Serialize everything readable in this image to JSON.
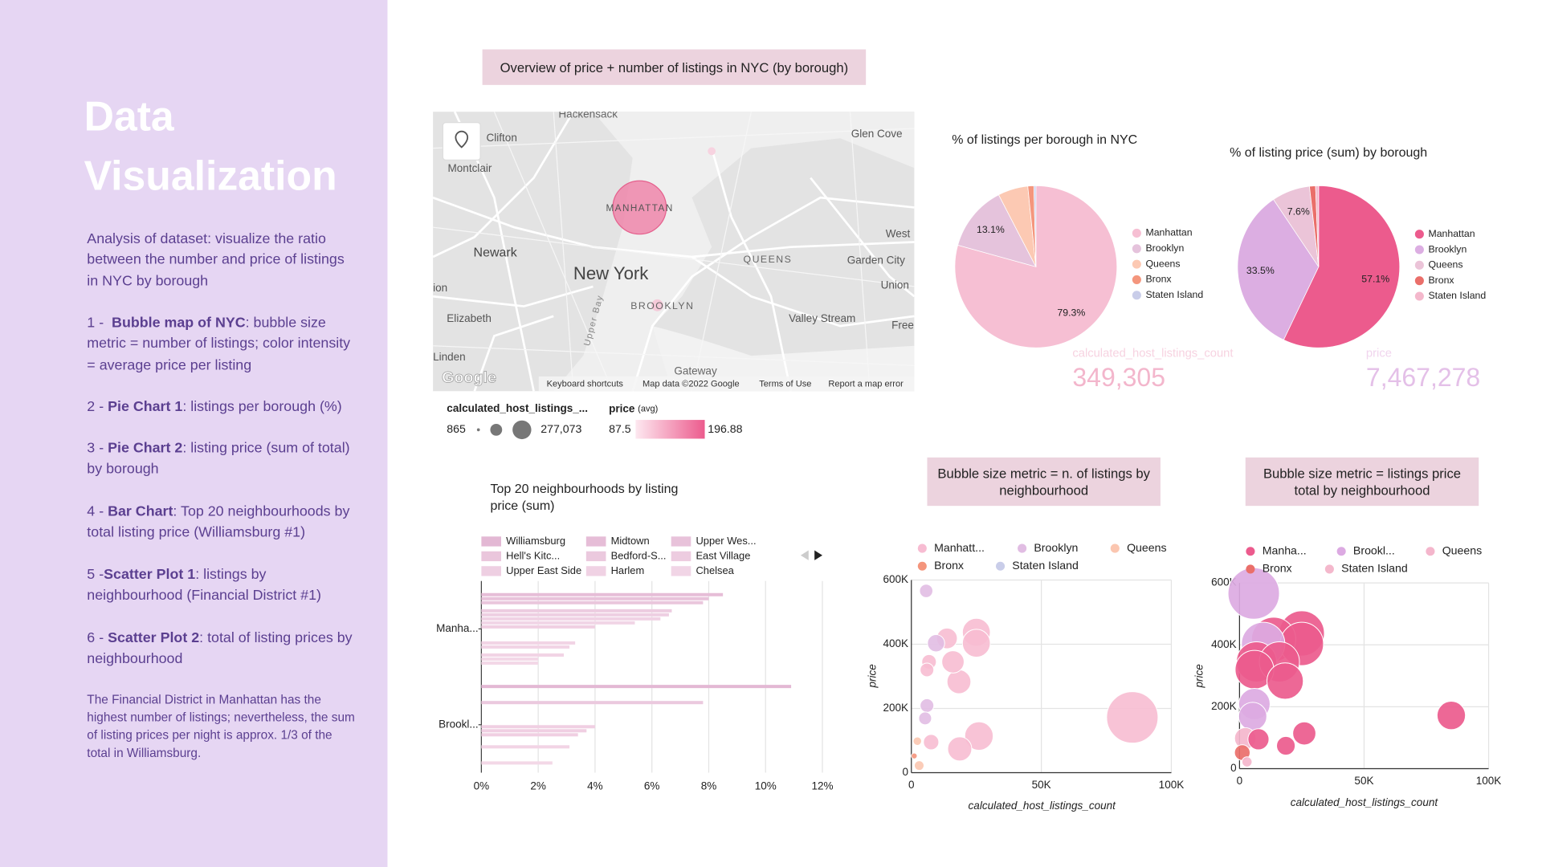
{
  "sidebar": {
    "title": "Data Visualization",
    "intro": "Analysis of dataset: visualize the ratio between the number and price of listings in NYC by borough",
    "items": [
      {
        "number": "1 - ",
        "name": "Bubble map of NYC",
        "text": ": bubble size metric = number of listings; color intensity = average price per listing"
      },
      {
        "number": "2 - ",
        "name": "Pie Chart 1",
        "text": ": listings per borough (%)"
      },
      {
        "number": "3 - ",
        "name": "Pie Chart 2",
        "text": ": listing price (sum of total) by borough"
      },
      {
        "number": "4 - ",
        "name": "Bar Chart",
        "text": ": Top 20 neighbourhoods by total listing price (Williamsburg #1)"
      },
      {
        "number": "5 -",
        "name": "Scatter Plot 1",
        "text": ": listings by neighbourhood (Financial District #1)"
      },
      {
        "number": "6 - ",
        "name": "Scatter Plot 2",
        "text": ": total of listing prices by neighbourhood"
      }
    ],
    "note": "The Financial District in Manhattan has the highest number of listings; nevertheless, the sum of listing prices per night is approx. 1/3 of the total in Williamsburg."
  },
  "header": {
    "title": "Overview of price + number of listings in NYC (by borough)"
  },
  "map": {
    "labels": [
      "Hackensack",
      "Clifton",
      "Montclair",
      "Glen Cove",
      "Newark",
      "New York",
      "QUEENS",
      "West",
      "Garden City",
      "Union",
      "ion",
      "Elizabeth",
      "BROOKLYN",
      "Valley Stream",
      "Free",
      "Linden",
      "Upper Bay",
      "Gateway",
      "MANHATTAN"
    ],
    "footer": [
      "Keyboard shortcuts",
      "Map data ©2022 Google",
      "Terms of Use",
      "Report a map error"
    ],
    "logo": "Google",
    "legend": {
      "size_title": "calculated_host_listings_...",
      "size_min": "865",
      "size_max": "277,073",
      "color_title": "price",
      "color_note": "(avg)",
      "color_min": "87.5",
      "color_max": "196.88"
    }
  },
  "kpis": [
    {
      "label": "calculated_host_listings_count",
      "value": "349,305"
    },
    {
      "label": "price",
      "value": "7,467,278"
    }
  ],
  "chart_data": [
    {
      "type": "pie",
      "title": "% of listings per borough in NYC",
      "categories": [
        "Manhattan",
        "Brooklyn",
        "Queens",
        "Bronx",
        "Staten Island"
      ],
      "values": [
        79.3,
        13.1,
        6.0,
        1.2,
        0.4
      ],
      "value_labels": [
        "79.3%",
        "13.1%",
        null,
        null,
        null
      ],
      "colors": [
        "#f6bfd3",
        "#e5c3dc",
        "#fcc9b3",
        "#f4967d",
        "#c9cde9"
      ]
    },
    {
      "type": "pie",
      "title": "% of listing price (sum) by borough",
      "categories": [
        "Manhattan",
        "Brooklyn",
        "Queens",
        "Bronx",
        "Staten Island"
      ],
      "values": [
        57.1,
        33.5,
        7.6,
        1.2,
        0.6
      ],
      "value_labels": [
        "57.1%",
        "33.5%",
        "7.6%",
        null,
        null
      ],
      "colors": [
        "#ec5b8d",
        "#dcaee2",
        "#ebc4d8",
        "#ea6f6a",
        "#f4b8cc"
      ]
    },
    {
      "type": "hbar",
      "title": "Top 20 neighbourhoods by listing price (sum)",
      "categories": [
        "Manha...",
        "Brookl..."
      ],
      "xlim": [
        0,
        12
      ],
      "xticks": [
        {
          "value": 0,
          "label": "0%"
        },
        {
          "value": 2,
          "label": "2%"
        },
        {
          "value": 4,
          "label": "4%"
        },
        {
          "value": 6,
          "label": "6%"
        },
        {
          "value": 8,
          "label": "8%"
        },
        {
          "value": 10,
          "label": "10%"
        },
        {
          "value": 12,
          "label": "12%"
        }
      ],
      "grid": true,
      "series": [
        {
          "name": "Williamsburg",
          "color": "#e3b8d4",
          "values": [
            null,
            10.9
          ]
        },
        {
          "name": "Midtown",
          "color": "#e6bdd7",
          "values": [
            8.5,
            null
          ]
        },
        {
          "name": "Upper Wes...",
          "color": "#e8c2da",
          "values": [
            8.0,
            null
          ]
        },
        {
          "name": "Hell's Kitc...",
          "color": "#eac6dc",
          "values": [
            7.8,
            null
          ]
        },
        {
          "name": "Bedford-S...",
          "color": "#ebc9de",
          "values": [
            null,
            7.8
          ]
        },
        {
          "name": "East Village",
          "color": "#edcce0",
          "values": [
            6.7,
            null
          ]
        },
        {
          "name": "Upper East Side",
          "color": "#eecfe2",
          "values": [
            6.6,
            null
          ]
        },
        {
          "name": "Harlem",
          "color": "#f0d2e4",
          "values": [
            6.3,
            null
          ]
        },
        {
          "name": "Chelsea",
          "color": "#f1d5e6",
          "values": [
            5.4,
            null
          ]
        },
        {
          "name": null,
          "color": "#f0cfe2",
          "values": [
            4.0,
            null
          ]
        },
        {
          "name": null,
          "color": "#f0cfe2",
          "values": [
            null,
            4.0
          ]
        },
        {
          "name": null,
          "color": "#f0cfe2",
          "values": [
            null,
            3.7
          ]
        },
        {
          "name": null,
          "color": "#f0cfe2",
          "values": [
            null,
            3.4
          ]
        },
        {
          "name": null,
          "color": "#f2d4e5",
          "values": [
            3.3,
            null
          ]
        },
        {
          "name": null,
          "color": "#f2d4e5",
          "values": [
            3.1,
            null
          ]
        },
        {
          "name": null,
          "color": "#f2d4e5",
          "values": [
            null,
            3.1
          ]
        },
        {
          "name": null,
          "color": "#f2d4e5",
          "values": [
            2.9,
            null
          ]
        },
        {
          "name": null,
          "color": "#f3d8e7",
          "values": [
            2.0,
            null
          ]
        },
        {
          "name": null,
          "color": "#f3d8e7",
          "values": [
            2.0,
            null
          ]
        },
        {
          "name": null,
          "color": "#f3d8e7",
          "values": [
            null,
            2.5
          ]
        }
      ]
    },
    {
      "type": "scatter",
      "title": "Bubble size metric = n. of listings by neighbourhood",
      "x_label": "calculated_host_listings_count",
      "y_label": "price",
      "size_by": "x",
      "xlim": [
        0,
        100000
      ],
      "ylim": [
        0,
        600000
      ],
      "xticks": [
        0,
        {
          "value": 50000,
          "label": "50K"
        },
        {
          "value": 100000,
          "label": "100K"
        }
      ],
      "yticks": [
        0,
        {
          "value": 200000,
          "label": "200K"
        },
        {
          "value": 400000,
          "label": "400K"
        },
        {
          "value": 600000,
          "label": "600K"
        }
      ],
      "grid": true,
      "series": [
        {
          "name": "Manhatt...",
          "color": "#f7bcd2",
          "x": [
            13700,
            25000,
            25000,
            6800,
            16000,
            6000,
            18300,
            26000,
            7600,
            18600,
            85000
          ],
          "y": [
            418000,
            437000,
            403000,
            345000,
            345000,
            320000,
            283000,
            114000,
            95000,
            74000,
            172000
          ]
        },
        {
          "name": "Brooklyn",
          "color": "#e1bde3",
          "x": [
            5700,
            9500,
            6000,
            5300
          ],
          "y": [
            566000,
            403000,
            209000,
            169000
          ]
        },
        {
          "name": "Queens",
          "color": "#fbc6b0",
          "x": [
            2300,
            3000
          ],
          "y": [
            98000,
            22000
          ]
        },
        {
          "name": "Bronx",
          "color": "#f4957c",
          "x": [
            1100
          ],
          "y": [
            52000
          ]
        },
        {
          "name": "Staten Island",
          "color": "#c9cde9",
          "x": [],
          "y": []
        }
      ]
    },
    {
      "type": "scatter",
      "title": "Bubble size metric = listings price total by neighbourhood",
      "x_label": "calculated_host_listings_count",
      "y_label": "price",
      "size_by": "y",
      "xlim": [
        0,
        100000
      ],
      "ylim": [
        0,
        600000
      ],
      "xticks": [
        0,
        {
          "value": 50000,
          "label": "50K"
        },
        {
          "value": 100000,
          "label": "100K"
        }
      ],
      "yticks": [
        0,
        {
          "value": 200000,
          "label": "200K"
        },
        {
          "value": 400000,
          "label": "400K"
        },
        {
          "value": 600000,
          "label": "600K"
        }
      ],
      "grid": true,
      "series": [
        {
          "name": "Manha...",
          "color": "#ec5b8d",
          "x": [
            13700,
            25000,
            25000,
            6800,
            16000,
            6000,
            18300,
            26000,
            7600,
            18600,
            85000
          ],
          "y": [
            418000,
            437000,
            403000,
            345000,
            345000,
            320000,
            283000,
            114000,
            95000,
            74000,
            172000
          ]
        },
        {
          "name": "Brookl...",
          "color": "#dcaae2",
          "x": [
            5700,
            9500,
            6000,
            5300
          ],
          "y": [
            566000,
            403000,
            209000,
            169000
          ]
        },
        {
          "name": "Queens",
          "color": "#f4b6cc",
          "x": [
            2300,
            3000
          ],
          "y": [
            98000,
            22000
          ]
        },
        {
          "name": "Bronx",
          "color": "#ea6f6a",
          "x": [
            1100
          ],
          "y": [
            52000
          ]
        },
        {
          "name": "Staten Island",
          "color": "#f4b8cc",
          "x": [],
          "y": []
        }
      ]
    }
  ]
}
